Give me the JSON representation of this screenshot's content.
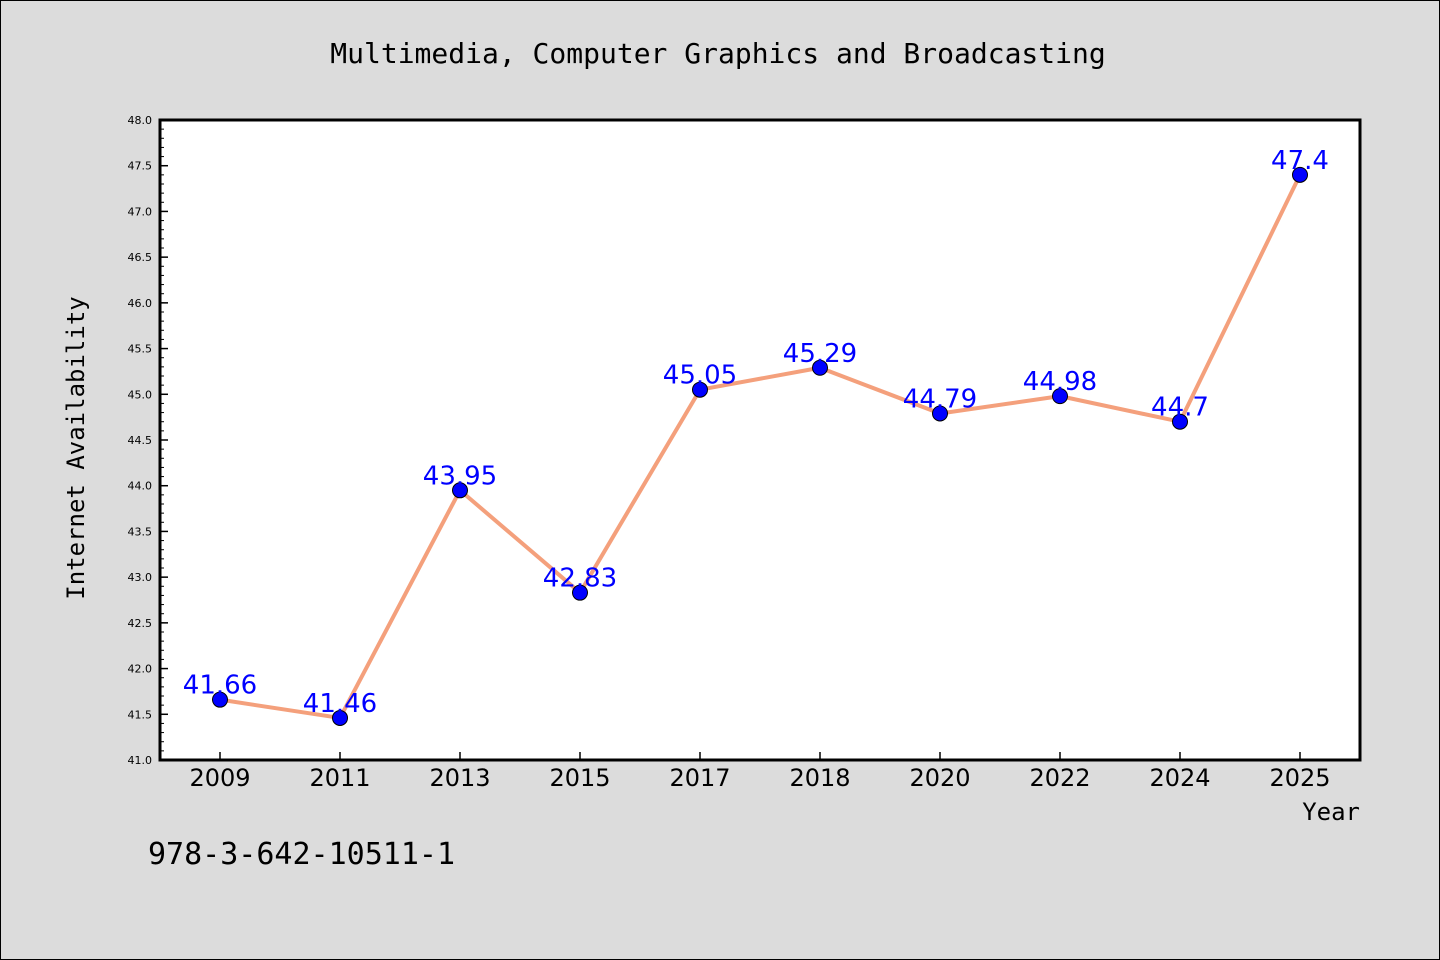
{
  "chart_data": {
    "type": "line",
    "title": "Multimedia, Computer Graphics and Broadcasting",
    "xlabel": "Year",
    "ylabel": "Internet Availability",
    "categories": [
      "2009",
      "2011",
      "2013",
      "2015",
      "2017",
      "2018",
      "2020",
      "2022",
      "2024",
      "2025"
    ],
    "values": [
      41.66,
      41.46,
      43.95,
      42.83,
      45.05,
      45.29,
      44.79,
      44.98,
      44.7,
      47.4
    ],
    "data_labels": [
      "41.66",
      "41.46",
      "43.95",
      "42.83",
      "45.05",
      "45.29",
      "44.79",
      "44.98",
      "44.7",
      "47.4"
    ],
    "ylim": [
      41.0,
      48.0
    ],
    "yticks": [
      "41.0",
      "41.5",
      "42.0",
      "42.5",
      "43.0",
      "43.5",
      "44.0",
      "44.5",
      "45.0",
      "45.5",
      "46.0",
      "46.5",
      "47.0",
      "47.5",
      "48.0"
    ],
    "grid": false,
    "colors": {
      "line": "#f4a07c",
      "marker": "#0000ff",
      "label": "#0000ff",
      "background": "#dcdcdc",
      "plot_background": "#ffffff"
    }
  },
  "footer_text": "978-3-642-10511-1"
}
